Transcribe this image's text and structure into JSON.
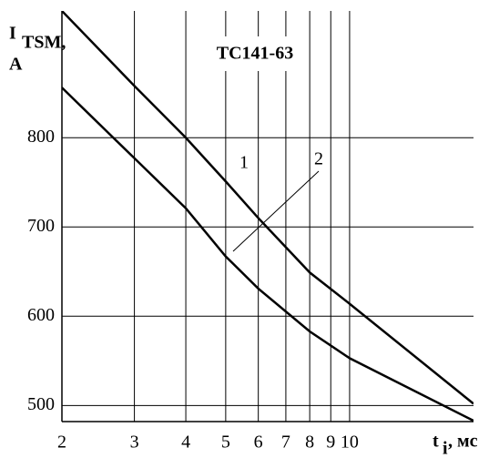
{
  "chart_data": {
    "type": "line",
    "title": "ТС141-63",
    "ylabel": {
      "main": "I",
      "sub": "TSM,",
      "unit": "A"
    },
    "xlabel": {
      "main": "t",
      "sub": "i",
      "unit": ", мс"
    },
    "x": [
      2,
      3,
      4,
      5,
      6,
      8,
      10,
      20
    ],
    "series": [
      {
        "name": "1",
        "color": "#000000",
        "values": [
          942,
          858,
          800,
          751,
          710,
          649,
          614,
          502
        ]
      },
      {
        "name": "2",
        "color": "#000000",
        "values": [
          856,
          777,
          721,
          667,
          631,
          583,
          553,
          483
        ]
      }
    ],
    "xlim": [
      2,
      20
    ],
    "ylim": [
      482,
      942
    ],
    "xscale": "log",
    "xticks": [
      2,
      3,
      4,
      5,
      6,
      7,
      8,
      9,
      10
    ],
    "yticks": [
      500,
      600,
      700,
      800
    ],
    "grid": true
  }
}
